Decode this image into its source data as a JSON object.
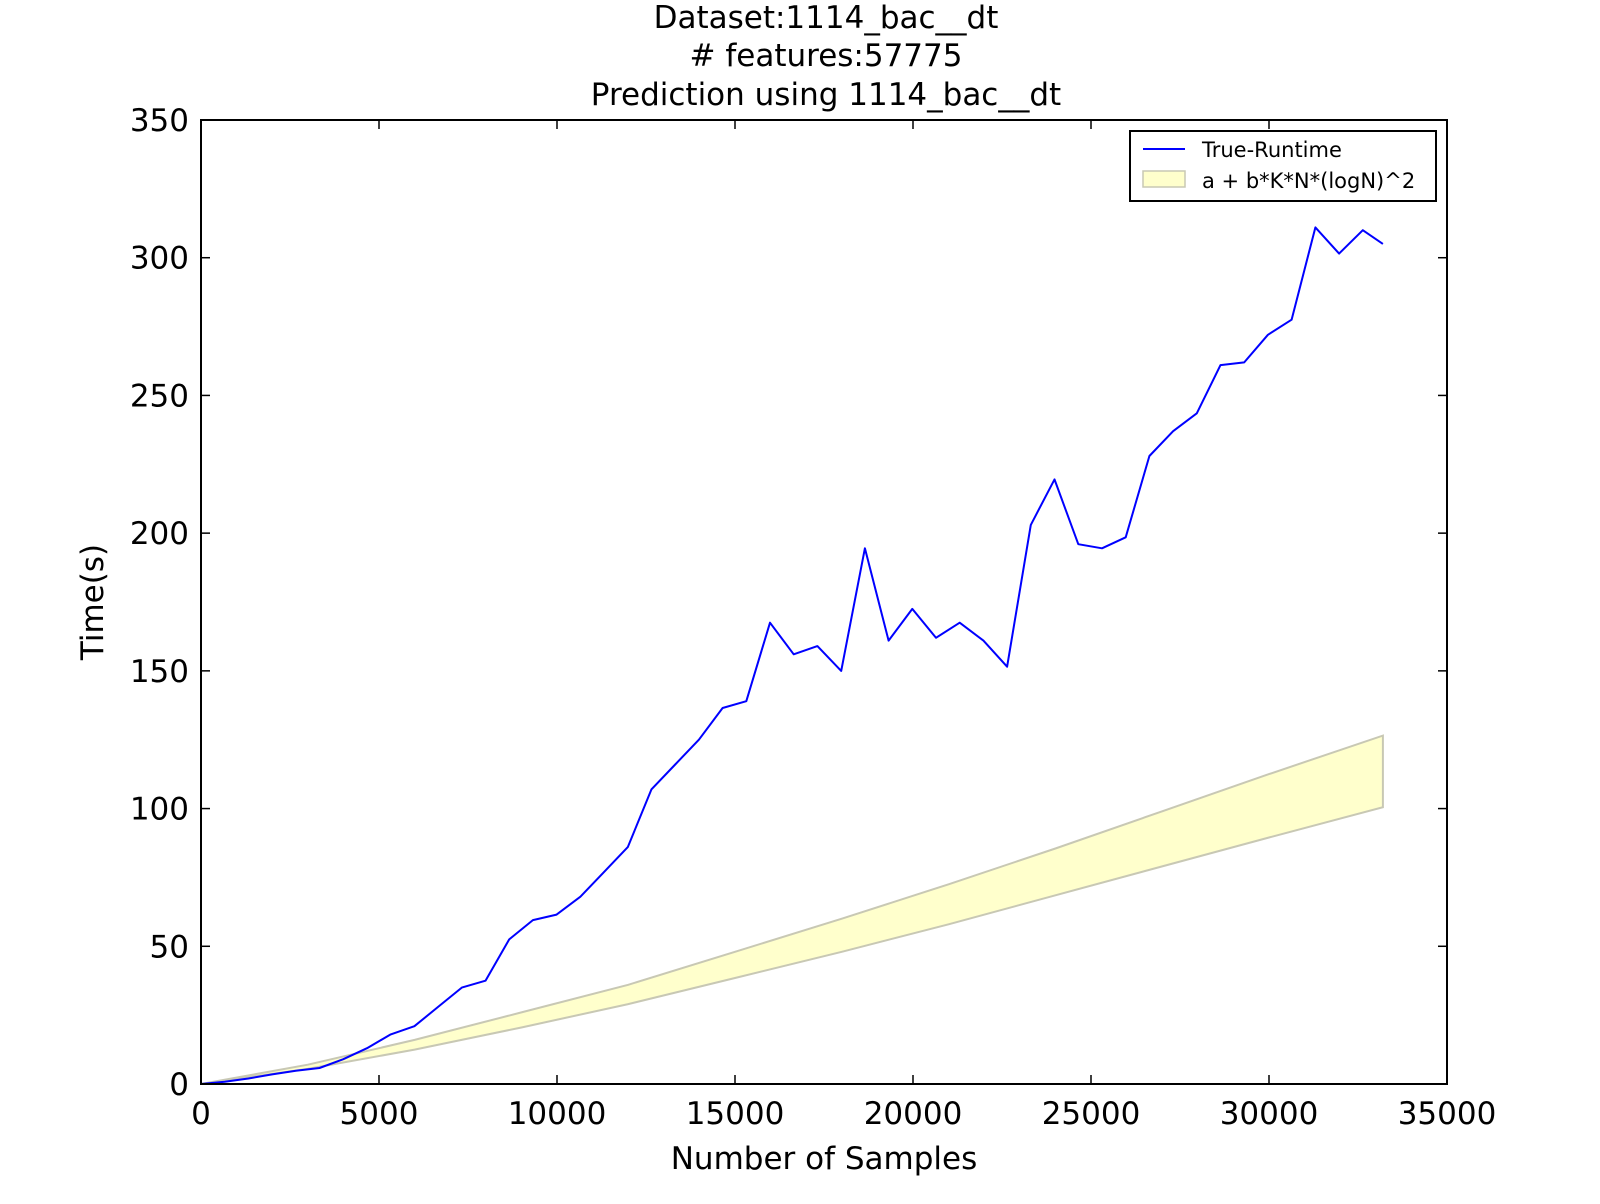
{
  "chart_data": {
    "type": "line",
    "title_lines": [
      "Dataset:1114_bac__dt",
      "# features:57775",
      "Prediction using 1114_bac__dt"
    ],
    "xlabel": "Number of Samples",
    "ylabel": "Time(s)",
    "xlim": [
      0,
      35000
    ],
    "ylim": [
      0,
      350
    ],
    "x_ticks": [
      0,
      5000,
      10000,
      15000,
      20000,
      25000,
      30000,
      35000
    ],
    "y_ticks": [
      0,
      50,
      100,
      150,
      200,
      250,
      300,
      350
    ],
    "grid": false,
    "legend_position": "top-right",
    "series": [
      {
        "name": "True-Runtime",
        "color": "#0000ff",
        "x": [
          0,
          666,
          1332,
          1998,
          2664,
          3330,
          3996,
          4662,
          5328,
          5994,
          6660,
          7326,
          7992,
          8658,
          9324,
          9990,
          10656,
          11322,
          11988,
          12654,
          13320,
          13986,
          14652,
          15318,
          15984,
          16650,
          17316,
          17982,
          18648,
          19314,
          19980,
          20646,
          21312,
          21978,
          22644,
          23310,
          23976,
          24642,
          25308,
          25974,
          26640,
          27306,
          27972,
          28638,
          29304,
          29970,
          30636,
          31302,
          31968,
          32634,
          33200
        ],
        "values": [
          0,
          0.8,
          2,
          3.5,
          4.8,
          5.8,
          9,
          13,
          18,
          21,
          28,
          35,
          37.5,
          52.5,
          59.5,
          61.5,
          68,
          77,
          86,
          107,
          116,
          125,
          136.5,
          139,
          167.5,
          156,
          159,
          150,
          194.5,
          161,
          172.5,
          162,
          167.5,
          161,
          151.5,
          203,
          219.5,
          196,
          194.5,
          198.5,
          228,
          237,
          243.5,
          261,
          262,
          272,
          277.5,
          311,
          301.5,
          310,
          305
        ]
      }
    ],
    "band": {
      "name": "a + b*K*N*(logN)^2",
      "fill_color": "#ffffcc",
      "edge_color": "#c8c8b4",
      "x": [
        0,
        3000,
        6000,
        9000,
        12000,
        15000,
        18000,
        21000,
        24000,
        27000,
        30000,
        33200
      ],
      "upper": [
        0,
        7,
        16,
        26,
        36,
        48,
        60,
        72.5,
        85.5,
        99,
        112.5,
        126.5
      ],
      "lower": [
        0,
        5.5,
        12.5,
        20.5,
        29,
        38.5,
        48,
        58,
        68.5,
        79,
        89.5,
        100.5
      ]
    }
  }
}
